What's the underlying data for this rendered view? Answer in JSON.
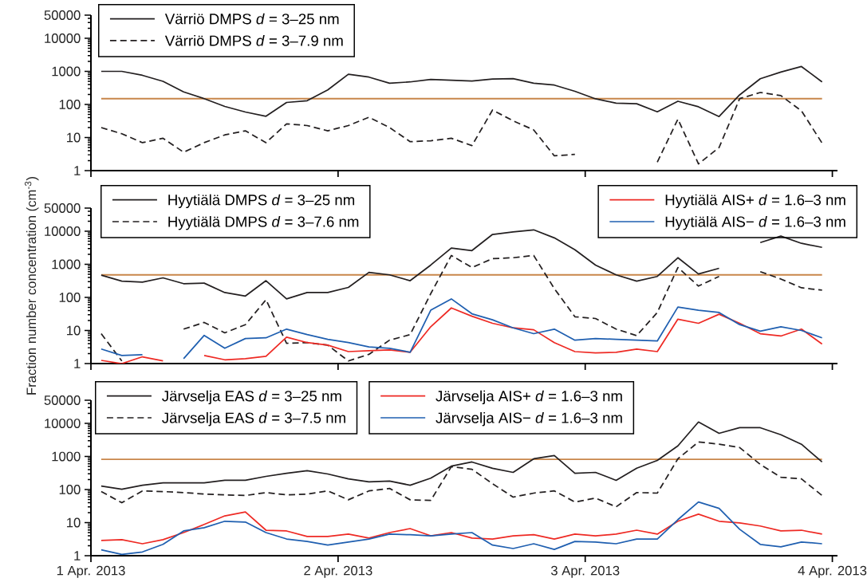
{
  "chart_data": [
    {
      "type": "line",
      "log": true,
      "legend": "top left",
      "tick_labels": "y",
      "x": [
        "2013-04-01T01:00",
        "2013-04-01T03:00",
        "2013-04-01T05:00",
        "2013-04-01T07:00",
        "2013-04-01T09:00",
        "2013-04-01T11:00",
        "2013-04-01T13:00",
        "2013-04-01T15:00",
        "2013-04-01T17:00",
        "2013-04-01T19:00",
        "2013-04-01T21:00",
        "2013-04-01T23:00",
        "2013-04-02T01:00",
        "2013-04-02T03:00",
        "2013-04-02T05:00",
        "2013-04-02T07:00",
        "2013-04-02T09:00",
        "2013-04-02T11:00",
        "2013-04-02T13:00",
        "2013-04-02T15:00",
        "2013-04-02T17:00",
        "2013-04-02T19:00",
        "2013-04-02T21:00",
        "2013-04-02T23:00",
        "2013-04-03T01:00",
        "2013-04-03T03:00",
        "2013-04-03T05:00",
        "2013-04-03T07:00",
        "2013-04-03T09:00",
        "2013-04-03T11:00",
        "2013-04-03T13:00",
        "2013-04-03T15:00",
        "2013-04-03T17:00",
        "2013-04-03T19:00",
        "2013-04-03T21:00",
        "2013-04-03T23:00"
      ],
      "xlim": [
        "2013-04-01T00:00",
        "2013-04-04T00:30"
      ],
      "xticks": [
        {
          "value": "2013-04-01",
          "label": null
        },
        {
          "value": "2013-04-02",
          "label": null
        },
        {
          "value": "2013-04-03",
          "label": null
        },
        {
          "value": "2013-04-04",
          "label": null
        }
      ],
      "ylim": [
        1,
        50000
      ],
      "yticks": [
        1,
        10,
        100,
        1000,
        10000,
        50000
      ],
      "ref_lines": [
        {
          "axis": "y",
          "value": 150,
          "color": "#c8864a"
        }
      ],
      "series": [
        {
          "name": "Värriö DMPS *d* = 3–25 nm",
          "color": "#231f20",
          "line_style": "solid",
          "values": [
            1000,
            1000,
            760,
            500,
            240,
            150,
            87,
            59,
            44,
            115,
            130,
            275,
            820,
            670,
            440,
            480,
            570,
            540,
            510,
            590,
            600,
            440,
            385,
            250,
            148,
            110,
            105,
            60,
            125,
            85,
            43,
            195,
            600,
            950,
            1400,
            480
          ]
        },
        {
          "name": "Värriö DMPS *d* = 3–7.9 nm",
          "color": "#231f20",
          "line_style": "dashed",
          "values": [
            20,
            13,
            7,
            9.5,
            3.6,
            7,
            12,
            16,
            7,
            26,
            23,
            16,
            23,
            41,
            20,
            7.5,
            8,
            9.5,
            5.7,
            68,
            32,
            17,
            2.8,
            3.1,
            null,
            null,
            null,
            1.8,
            36,
            1.6,
            5,
            150,
            230,
            185,
            64,
            6.8
          ]
        }
      ]
    },
    {
      "type": "line",
      "log": true,
      "legend": "top right",
      "tick_labels": "y",
      "ylabel": "Fraction number concentration (cm$^{-3}$)",
      "x": [
        "2013-04-01T01:00",
        "2013-04-01T03:00",
        "2013-04-01T05:00",
        "2013-04-01T07:00",
        "2013-04-01T09:00",
        "2013-04-01T11:00",
        "2013-04-01T13:00",
        "2013-04-01T15:00",
        "2013-04-01T17:00",
        "2013-04-01T19:00",
        "2013-04-01T21:00",
        "2013-04-01T23:00",
        "2013-04-02T01:00",
        "2013-04-02T03:00",
        "2013-04-02T05:00",
        "2013-04-02T07:00",
        "2013-04-02T09:00",
        "2013-04-02T11:00",
        "2013-04-02T13:00",
        "2013-04-02T15:00",
        "2013-04-02T17:00",
        "2013-04-02T19:00",
        "2013-04-02T21:00",
        "2013-04-02T23:00",
        "2013-04-03T01:00",
        "2013-04-03T03:00",
        "2013-04-03T05:00",
        "2013-04-03T07:00",
        "2013-04-03T09:00",
        "2013-04-03T11:00",
        "2013-04-03T13:00",
        "2013-04-03T15:00",
        "2013-04-03T17:00",
        "2013-04-03T19:00",
        "2013-04-03T21:00",
        "2013-04-03T23:00"
      ],
      "xlim": [
        "2013-04-01T00:00",
        "2013-04-04T00:30"
      ],
      "xticks": [
        {
          "value": "2013-04-01",
          "label": null
        },
        {
          "value": "2013-04-02",
          "label": null
        },
        {
          "value": "2013-04-03",
          "label": null
        },
        {
          "value": "2013-04-04",
          "label": null
        }
      ],
      "ylim": [
        1,
        50000
      ],
      "yticks": [
        1,
        10,
        100,
        1000,
        10000,
        50000
      ],
      "ref_lines": [
        {
          "axis": "y",
          "value": 480,
          "color": "#c8864a"
        }
      ],
      "series": [
        {
          "name": "Hyytiälä DMPS *d* = 3–25 nm",
          "color": "#231f20",
          "line_style": "solid",
          "values": [
            470,
            310,
            290,
            390,
            260,
            270,
            140,
            110,
            320,
            90,
            140,
            140,
            200,
            570,
            480,
            320,
            950,
            3100,
            2600,
            8000,
            9500,
            11000,
            6300,
            2750,
            950,
            480,
            310,
            430,
            1580,
            510,
            760,
            null,
            4550,
            7100,
            4300,
            3250
          ]
        },
        {
          "name": "Hyytiälä DMPS *d* = 3–7.6 nm",
          "color": "#231f20",
          "line_style": "dashed",
          "values": [
            8,
            1.2,
            null,
            null,
            11,
            17.5,
            8.5,
            15,
            85,
            4.1,
            4.3,
            3.6,
            1.2,
            1.9,
            5.1,
            7.5,
            130,
            1850,
            800,
            1480,
            1580,
            1850,
            185,
            26,
            23,
            11,
            7,
            35,
            800,
            220,
            430,
            null,
            600,
            360,
            195,
            165
          ]
        },
        {
          "name": "Hyytiälä AIS+ *d* = 1.6–3 nm",
          "color": "#ee2a24",
          "line_style": "solid",
          "values": [
            1.25,
            1,
            1.6,
            1.2,
            null,
            1.75,
            1.3,
            1.4,
            1.65,
            6.3,
            4.3,
            3.6,
            2.3,
            2.45,
            2.6,
            2.2,
            13,
            48,
            27,
            16.5,
            12,
            10.5,
            4.3,
            2.3,
            2.1,
            2.2,
            2.75,
            2.3,
            22,
            16.5,
            31,
            16.5,
            8,
            6.8,
            11,
            3.9
          ]
        },
        {
          "name": "Hyytiälä AIS− *d* = 1.6–3 nm",
          "color": "#1f5fb0",
          "line_style": "solid",
          "values": [
            2.75,
            1.75,
            1.85,
            null,
            1.4,
            7.1,
            2.9,
            5.7,
            6,
            11,
            7.5,
            5.4,
            4.3,
            3.2,
            2.9,
            2.2,
            41,
            90,
            32,
            21,
            12,
            8,
            11,
            5.1,
            5.7,
            5.4,
            5.1,
            4.8,
            51,
            41,
            35,
            15,
            9.5,
            13,
            10,
            6
          ]
        }
      ]
    },
    {
      "type": "line",
      "log": true,
      "legend": "top",
      "x": [
        "2013-04-01T01:00",
        "2013-04-01T03:00",
        "2013-04-01T05:00",
        "2013-04-01T07:00",
        "2013-04-01T09:00",
        "2013-04-01T11:00",
        "2013-04-01T13:00",
        "2013-04-01T15:00",
        "2013-04-01T17:00",
        "2013-04-01T19:00",
        "2013-04-01T21:00",
        "2013-04-01T23:00",
        "2013-04-02T01:00",
        "2013-04-02T03:00",
        "2013-04-02T05:00",
        "2013-04-02T07:00",
        "2013-04-02T09:00",
        "2013-04-02T11:00",
        "2013-04-02T13:00",
        "2013-04-02T15:00",
        "2013-04-02T17:00",
        "2013-04-02T19:00",
        "2013-04-02T21:00",
        "2013-04-02T23:00",
        "2013-04-03T01:00",
        "2013-04-03T03:00",
        "2013-04-03T05:00",
        "2013-04-03T07:00",
        "2013-04-03T09:00",
        "2013-04-03T11:00",
        "2013-04-03T13:00",
        "2013-04-03T15:00",
        "2013-04-03T17:00",
        "2013-04-03T19:00",
        "2013-04-03T21:00",
        "2013-04-03T23:00"
      ],
      "xlim": [
        "2013-04-01T00:00",
        "2013-04-04T00:30"
      ],
      "xticks": [
        {
          "value": "2013-04-01",
          "label": "1 Apr. 2013"
        },
        {
          "value": "2013-04-02",
          "label": "2 Apr. 2013"
        },
        {
          "value": "2013-04-03",
          "label": "3 Apr. 2013"
        },
        {
          "value": "2013-04-04",
          "label": "4 Apr. 2013"
        }
      ],
      "ylim": [
        1,
        50000
      ],
      "yticks": [
        1,
        10,
        100,
        1000,
        10000,
        50000
      ],
      "ref_lines": [
        {
          "axis": "y",
          "value": 820,
          "color": "#c8864a"
        }
      ],
      "series": [
        {
          "name": "Järvselja EAS *d* = 3–25 nm",
          "color": "#231f20",
          "line_style": "solid",
          "values": [
            128,
            102,
            135,
            160,
            160,
            160,
            190,
            190,
            250,
            310,
            370,
            295,
            210,
            170,
            180,
            135,
            220,
            510,
            680,
            440,
            330,
            850,
            1070,
            310,
            330,
            190,
            440,
            760,
            2090,
            11000,
            5000,
            7400,
            7400,
            4550,
            2340,
            680
          ]
        },
        {
          "name": "Järvselja EAS *d* = 3–7.5 nm",
          "color": "#231f20",
          "line_style": "dashed",
          "values": [
            87,
            40,
            91,
            87,
            81,
            73,
            69,
            66,
            81,
            69,
            73,
            91,
            49,
            91,
            108,
            49,
            47,
            490,
            410,
            150,
            59,
            78,
            91,
            42,
            55,
            30,
            81,
            78,
            850,
            2750,
            2340,
            1860,
            575,
            235,
            210,
            66
          ]
        },
        {
          "name": "Järvselja AIS+ *d* = 1.6–3 nm",
          "color": "#ee2a24",
          "line_style": "solid",
          "values": [
            2.9,
            3.05,
            2.3,
            3.05,
            5,
            8.8,
            16,
            21,
            5.9,
            5.6,
            3.8,
            3.8,
            4.5,
            3.4,
            5,
            6.6,
            4,
            5,
            3.4,
            3.2,
            4,
            4.3,
            3.2,
            4.5,
            4,
            4.5,
            5.9,
            4.5,
            11,
            18,
            11,
            9.8,
            7.9,
            5.6,
            5.9,
            4.5
          ]
        },
        {
          "name": "Järvselja AIS− *d* = 1.6–3 nm",
          "color": "#1f5fb0",
          "line_style": "solid",
          "values": [
            1.5,
            1.1,
            1.3,
            2.2,
            5.6,
            7,
            11,
            10.4,
            5,
            3.2,
            2.7,
            2.1,
            2.6,
            3.2,
            4.5,
            4.3,
            4,
            4.5,
            5,
            2.1,
            1.65,
            2.3,
            1.55,
            2.7,
            2.6,
            2.3,
            3.2,
            3.2,
            12.3,
            42,
            27,
            6.3,
            2.2,
            1.85,
            2.6,
            2.3
          ]
        }
      ]
    }
  ]
}
